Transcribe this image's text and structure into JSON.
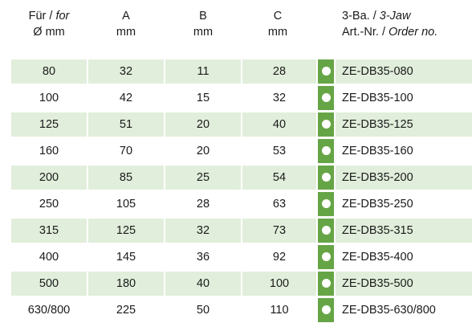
{
  "header": {
    "for_de": "Für",
    "for_sep": " / ",
    "for_en": "for",
    "for_unit": "Ø mm",
    "a_label": "A",
    "a_unit": "mm",
    "b_label": "B",
    "b_unit": "mm",
    "c_label": "C",
    "c_unit": "mm",
    "jaw_de": "3-Ba.",
    "jaw_sep": " / ",
    "jaw_en": "3-Jaw",
    "art_de": "Art.-Nr.",
    "art_sep": " / ",
    "art_en": "Order no."
  },
  "colors": {
    "row_shade": "#e1eedb",
    "marker_green": "#66a546",
    "marker_dot": "#ffffff"
  },
  "rows": [
    {
      "dia": "80",
      "a": "32",
      "b": "11",
      "c": "28",
      "order": "ZE-DB35-080"
    },
    {
      "dia": "100",
      "a": "42",
      "b": "15",
      "c": "32",
      "order": "ZE-DB35-100"
    },
    {
      "dia": "125",
      "a": "51",
      "b": "20",
      "c": "40",
      "order": "ZE-DB35-125"
    },
    {
      "dia": "160",
      "a": "70",
      "b": "20",
      "c": "53",
      "order": "ZE-DB35-160"
    },
    {
      "dia": "200",
      "a": "85",
      "b": "25",
      "c": "54",
      "order": "ZE-DB35-200"
    },
    {
      "dia": "250",
      "a": "105",
      "b": "28",
      "c": "63",
      "order": "ZE-DB35-250"
    },
    {
      "dia": "315",
      "a": "125",
      "b": "32",
      "c": "73",
      "order": "ZE-DB35-315"
    },
    {
      "dia": "400",
      "a": "145",
      "b": "36",
      "c": "92",
      "order": "ZE-DB35-400"
    },
    {
      "dia": "500",
      "a": "180",
      "b": "40",
      "c": "100",
      "order": "ZE-DB35-500"
    },
    {
      "dia": "630/800",
      "a": "225",
      "b": "50",
      "c": "110",
      "order": "ZE-DB35-630/800"
    }
  ]
}
